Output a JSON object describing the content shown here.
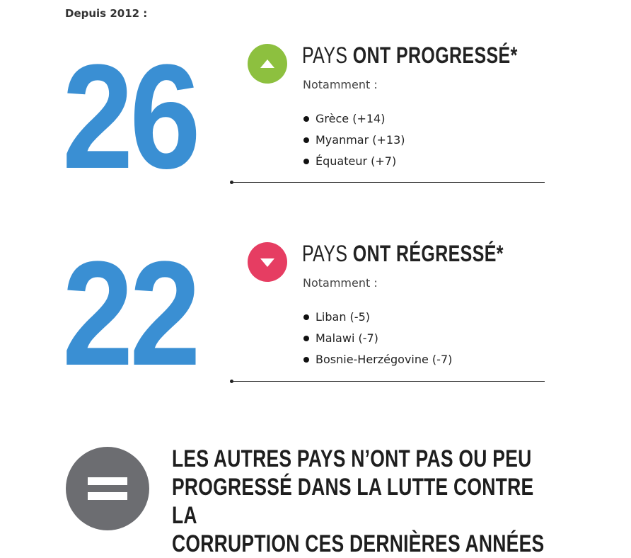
{
  "intro": "Depuis 2012 :",
  "progressed": {
    "count": "26",
    "icon": "triangle-up-icon",
    "color": "#8dc03f",
    "heading_light": "PAYS ",
    "heading_bold": "ONT PROGRESSÉ*",
    "note": "Notamment :",
    "items": [
      "Grèce (+14)",
      "Myanmar (+13)",
      "Équateur (+7)"
    ]
  },
  "regressed": {
    "count": "22",
    "icon": "triangle-down-icon",
    "color": "#e63d62",
    "heading_light": "PAYS ",
    "heading_bold": "ONT RÉGRESSÉ*",
    "note": "Notamment :",
    "items": [
      "Liban (-5)",
      "Malawi (-7)",
      "Bosnie-Herzégovine (-7)"
    ]
  },
  "others": {
    "icon": "equals-icon",
    "lines": [
      "LES AUTRES PAYS N’ONT PAS OU PEU",
      "PROGRESSÉ DANS LA LUTTE CONTRE LA",
      "CORRUPTION CES DERNIÈRES ANNÉES"
    ]
  },
  "colors": {
    "number": "#3a8fd3",
    "equals_circle": "#6c6d71"
  }
}
